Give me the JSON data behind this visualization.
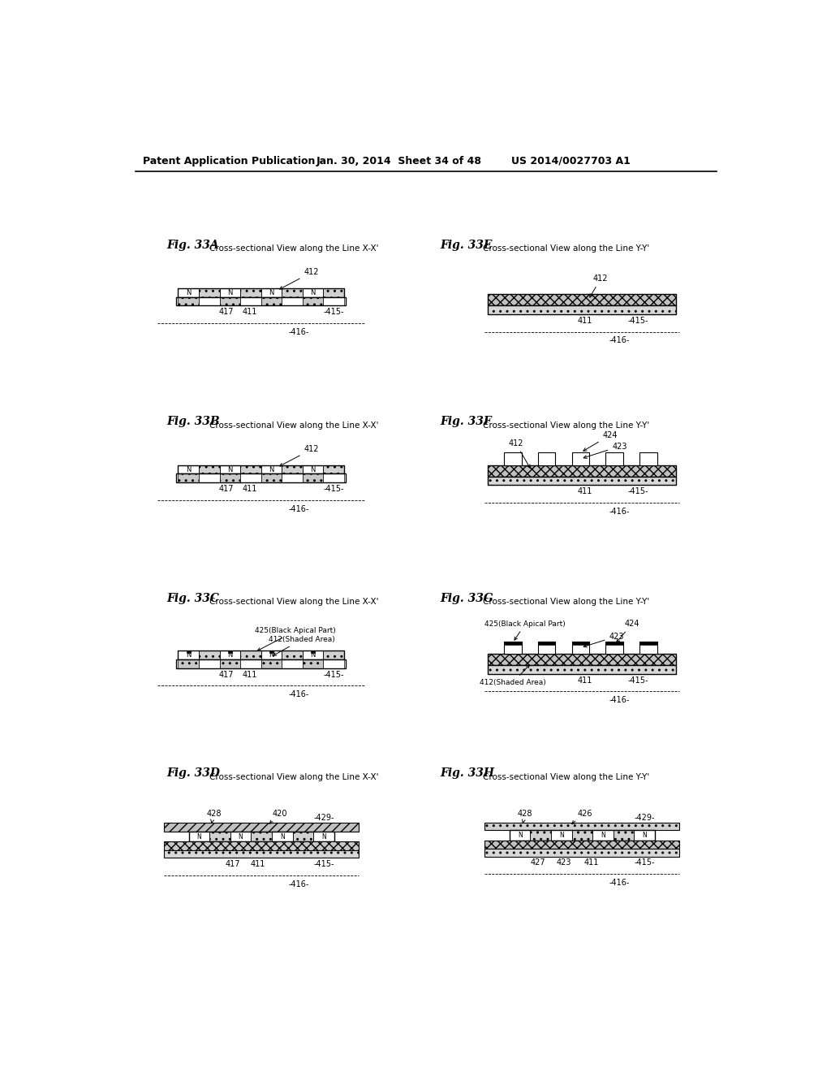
{
  "header_left": "Patent Application Publication",
  "header_mid": "Jan. 30, 2014  Sheet 34 of 48",
  "header_right": "US 2014/0027703 A1",
  "bg_color": "#ffffff"
}
